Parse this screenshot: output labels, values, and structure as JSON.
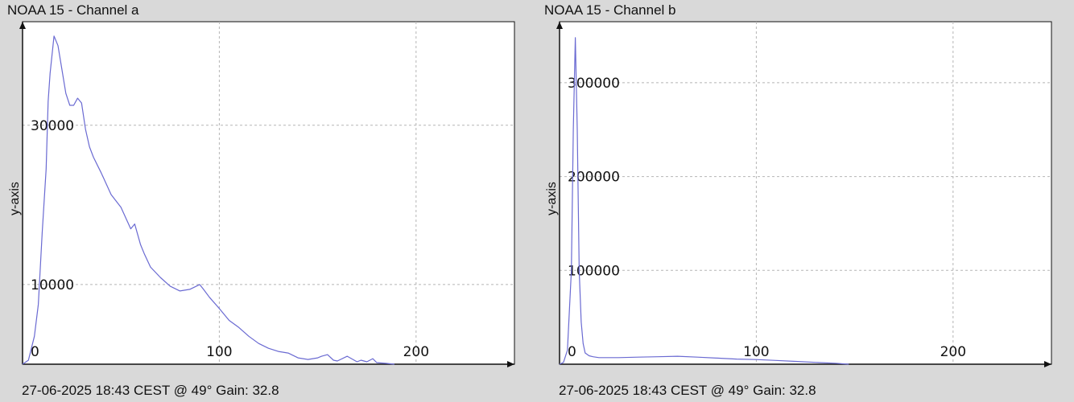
{
  "panels": [
    {
      "title": "NOAA 15 - Channel a",
      "ylabel": "y-axis",
      "footer": "27-06-2025 18:43 CEST @ 49° Gain: 32.8"
    },
    {
      "title": "NOAA 15 - Channel b",
      "ylabel": "y-axis",
      "footer": "27-06-2025 18:43 CEST @ 49° Gain: 32.8"
    }
  ],
  "colors": {
    "line": "#6a6ad2",
    "grid": "#b5b5b5",
    "axis": "#111111",
    "plot_bg": "#ffffff",
    "page_bg": "#d9d9d9"
  },
  "chart_data": [
    {
      "type": "line",
      "title": "NOAA 15 - Channel a",
      "xlabel": "",
      "ylabel": "y-axis",
      "xlim": [
        0,
        250
      ],
      "ylim": [
        0,
        43000
      ],
      "xticks": [
        0,
        100,
        200
      ],
      "yticks": [
        10000,
        30000
      ],
      "grid": true,
      "series": [
        {
          "x": [
            0,
            3,
            6,
            8,
            10,
            12,
            13,
            14,
            16,
            18,
            20,
            22,
            24,
            26,
            28,
            30,
            32,
            34,
            36,
            38,
            40,
            45,
            50,
            55,
            57,
            60,
            62,
            65,
            70,
            75,
            80,
            85,
            90,
            92,
            95,
            100,
            105,
            110,
            115,
            120,
            125,
            130,
            135,
            140,
            145,
            150,
            152,
            155,
            158,
            160,
            165,
            170,
            172,
            175,
            178,
            180,
            185,
            189
          ],
          "y": [
            0,
            500,
            3500,
            7500,
            16500,
            24500,
            33000,
            36500,
            41200,
            40000,
            37000,
            34000,
            32500,
            32500,
            33400,
            32800,
            29500,
            27300,
            26000,
            25000,
            24000,
            21300,
            19700,
            17000,
            17600,
            15000,
            13800,
            12200,
            10900,
            9800,
            9200,
            9400,
            10000,
            9400,
            8400,
            7000,
            5500,
            4600,
            3500,
            2600,
            2000,
            1600,
            1400,
            800,
            600,
            800,
            1000,
            1200,
            500,
            400,
            1000,
            300,
            500,
            300,
            700,
            200,
            100,
            0
          ]
        }
      ]
    },
    {
      "type": "line",
      "title": "NOAA 15 - Channel b",
      "xlabel": "",
      "ylabel": "y-axis",
      "xlim": [
        0,
        250
      ],
      "ylim": [
        0,
        365000
      ],
      "xticks": [
        0,
        100,
        200
      ],
      "yticks": [
        100000,
        200000,
        300000
      ],
      "grid": true,
      "series": [
        {
          "x": [
            0,
            2,
            4,
            6,
            7,
            8,
            9,
            10,
            11,
            12,
            13,
            15,
            17,
            20,
            30,
            40,
            50,
            60,
            70,
            80,
            90,
            100,
            110,
            120,
            130,
            140,
            147
          ],
          "y": [
            0,
            2000,
            15000,
            100000,
            250000,
            348000,
            250000,
            100000,
            45000,
            22000,
            12000,
            9000,
            8000,
            7000,
            7000,
            7500,
            8000,
            8500,
            7500,
            6500,
            5500,
            5000,
            4000,
            3000,
            2000,
            1000,
            0
          ]
        }
      ]
    }
  ]
}
